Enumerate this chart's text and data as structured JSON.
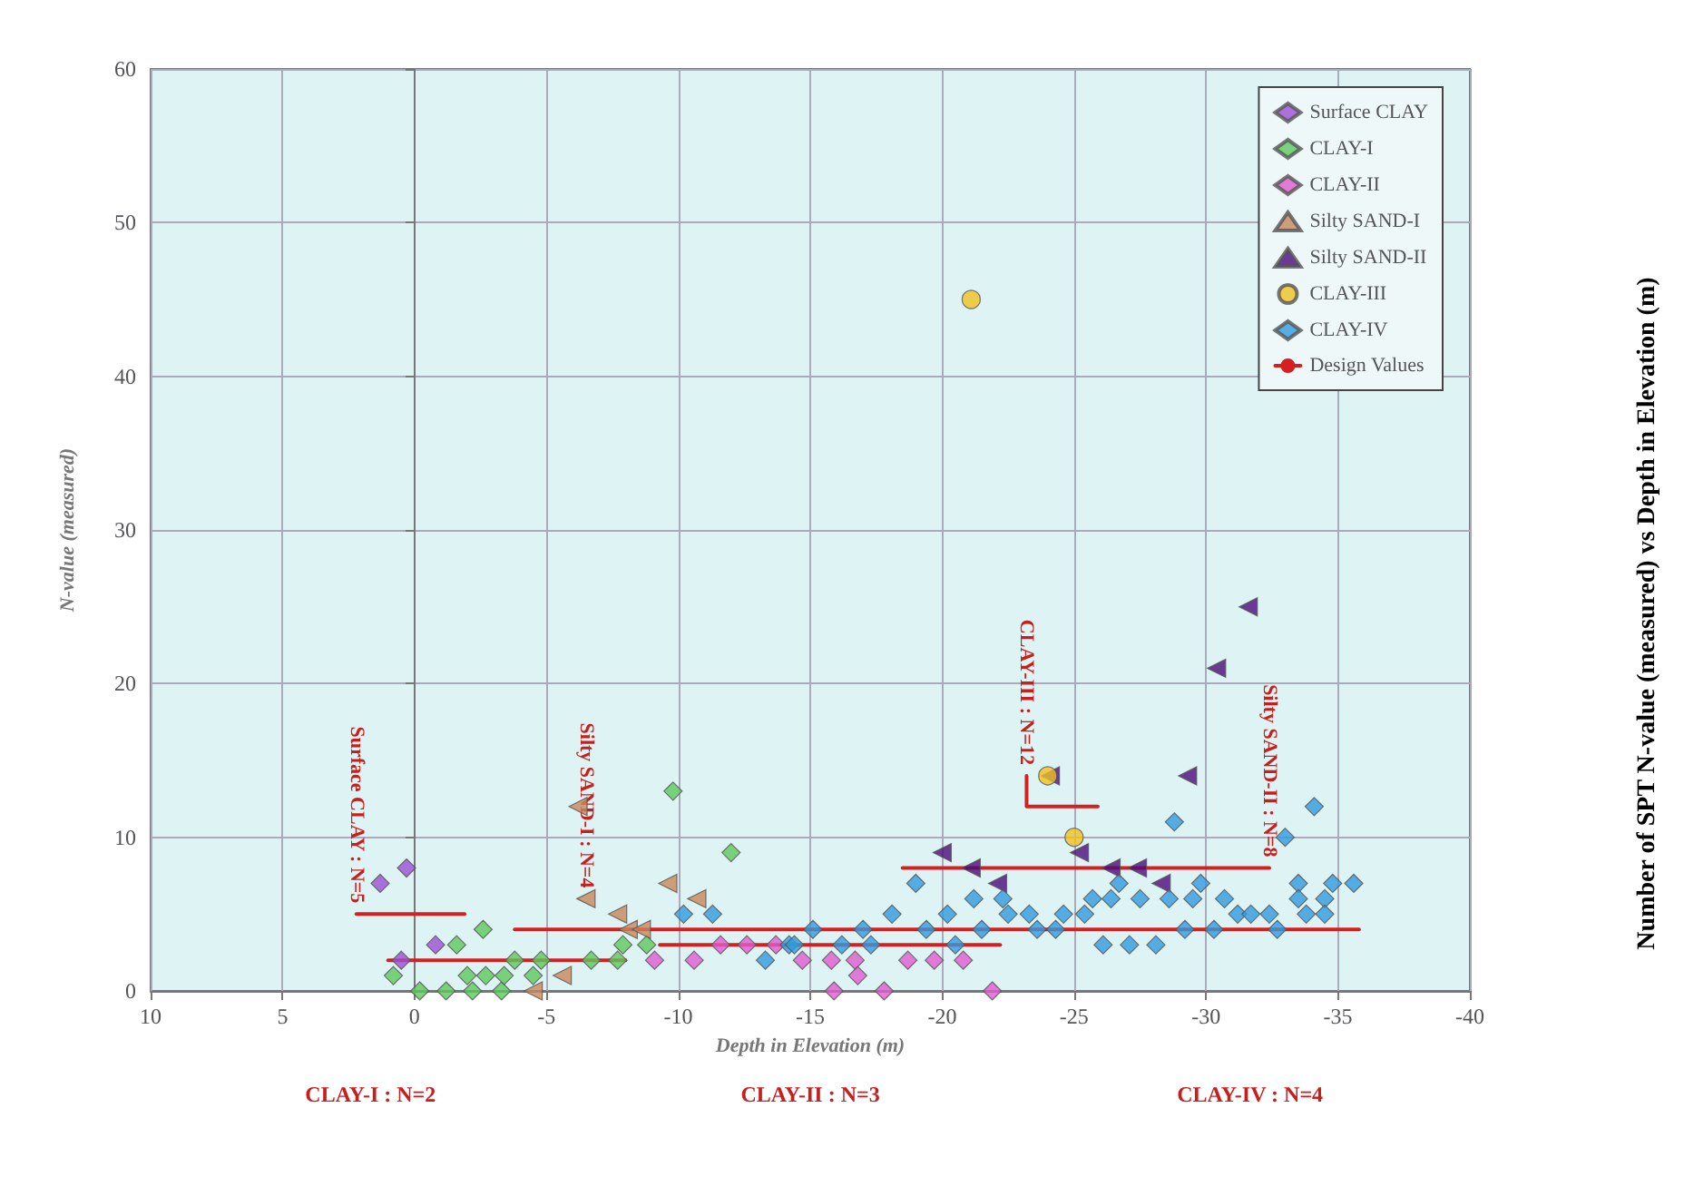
{
  "chart_data": {
    "type": "scatter",
    "title": "Number of SPT N-value (measured) vs Depth in Elevation (m)",
    "xlabel": "Depth in Elevation (m)",
    "ylabel": "N-value (measured)",
    "xlim": [
      10,
      -40
    ],
    "xticks": [
      10,
      5,
      0,
      -5,
      -10,
      -15,
      -20,
      -25,
      -30,
      -35,
      -40
    ],
    "ylim": [
      0,
      60
    ],
    "yticks": [
      0,
      10,
      20,
      30,
      40,
      50,
      60
    ],
    "grid": true,
    "legend": "top right",
    "series": [
      {
        "name": "Surface CLAY",
        "color": "#9b4fd6",
        "marker": "diamond",
        "x": [
          1.3,
          0.3,
          -0.8,
          0.5
        ],
        "values": [
          7,
          8,
          3,
          2
        ]
      },
      {
        "name": "CLAY-I",
        "color": "#5cc85c",
        "marker": "diamond",
        "x": [
          0.8,
          -0.2,
          -1.2,
          -1.6,
          -2.6,
          -2.2,
          -3.3,
          -2,
          -2.7,
          -3.4,
          -3.8,
          -4.8,
          -4.5,
          -6.7,
          -7.7,
          -7.9,
          -8.8,
          -9.8,
          -12
        ],
        "values": [
          1,
          0,
          0,
          3,
          4,
          0,
          0,
          1,
          1,
          1,
          2,
          2,
          1,
          2,
          2,
          3,
          3,
          13,
          9
        ]
      },
      {
        "name": "CLAY-II",
        "color": "#e05ad0",
        "marker": "diamond",
        "x": [
          -9.1,
          -10.6,
          -11.6,
          -12.6,
          -13.7,
          -14.7,
          -15.8,
          -15.9,
          -16.7,
          -16.8,
          -17.8,
          -18.7,
          -19.7,
          -20.8,
          -21.9
        ],
        "values": [
          2,
          2,
          3,
          3,
          3,
          2,
          2,
          0,
          2,
          1,
          0,
          2,
          2,
          2,
          0
        ]
      },
      {
        "name": "Silty SAND-I",
        "color": "#c8865a",
        "marker": "triangle",
        "x": [
          -6.2,
          -6.5,
          -7.7,
          -8.1,
          -8.6,
          -9.6,
          -10.7,
          -5.6,
          -4.5
        ],
        "values": [
          12,
          6,
          5,
          4,
          4,
          7,
          6,
          1,
          0
        ]
      },
      {
        "name": "Silty SAND-II",
        "color": "#4b0a7a",
        "marker": "triangle",
        "x": [
          -31.6,
          -30.4,
          -29.3,
          -20,
          -21.1,
          -22.1,
          -25.2,
          -26.4,
          -27.4,
          -28.3,
          -24.1
        ],
        "values": [
          25,
          21,
          14,
          9,
          8,
          7,
          9,
          8,
          8,
          7,
          14
        ]
      },
      {
        "name": "CLAY-III",
        "color": "#f0c020",
        "marker": "circle",
        "x": [
          -21.1,
          -24,
          -25
        ],
        "values": [
          45,
          14,
          10
        ]
      },
      {
        "name": "CLAY-IV",
        "color": "#2f9be0",
        "marker": "diamond",
        "x": [
          -10.2,
          -11.3,
          -13.3,
          -14.2,
          -14.4,
          -15.1,
          -16.2,
          -17,
          -17.3,
          -18.1,
          -19,
          -19.4,
          -20.2,
          -20.5,
          -21.2,
          -21.5,
          -22.3,
          -22.5,
          -23.3,
          -23.6,
          -24.3,
          -24.6,
          -25.4,
          -25.7,
          -26.1,
          -26.4,
          -26.7,
          -27.1,
          -27.5,
          -28.1,
          -28.6,
          -28.8,
          -29.2,
          -29.5,
          -29.8,
          -30.3,
          -30.7,
          -31.2,
          -31.7,
          -32.4,
          -32.7,
          -33,
          -33.5,
          -33.5,
          -33.8,
          -34.1,
          -34.5,
          -34.5,
          -34.8,
          -35.6
        ],
        "values": [
          5,
          5,
          2,
          3,
          3,
          4,
          3,
          4,
          3,
          5,
          7,
          4,
          5,
          3,
          6,
          4,
          6,
          5,
          5,
          4,
          4,
          5,
          5,
          6,
          3,
          6,
          7,
          3,
          6,
          3,
          6,
          11,
          4,
          6,
          7,
          4,
          6,
          5,
          5,
          5,
          4,
          10,
          7,
          6,
          5,
          12,
          6,
          5,
          7,
          7
        ]
      },
      {
        "name": "Design Values",
        "type": "line",
        "color": "#d42020",
        "marker": "none",
        "x": [
          2.2,
          -1.9
        ],
        "values": [
          5,
          5
        ]
      },
      {
        "type": "line",
        "color": "#d42020",
        "marker": "none",
        "x": [
          1,
          -8
        ],
        "values": [
          2,
          2
        ]
      },
      {
        "type": "line",
        "color": "#d42020",
        "marker": "none",
        "x": [
          -9.3,
          -22.2
        ],
        "values": [
          3,
          3
        ]
      },
      {
        "type": "line",
        "color": "#d42020",
        "marker": "none",
        "x": [
          -3.8,
          -35.8
        ],
        "values": [
          4,
          4
        ]
      },
      {
        "type": "line",
        "color": "#d42020",
        "marker": "none",
        "x": [
          -18.5,
          -32.4
        ],
        "values": [
          8,
          8
        ]
      },
      {
        "type": "line",
        "color": "#d42020",
        "marker": "none",
        "x": [
          -23.2,
          -23.2,
          -25.9
        ],
        "values": [
          14,
          12,
          12
        ]
      }
    ],
    "annotations": [
      {
        "text": "Surface CLAY : N=5",
        "x": 2.2,
        "y": 5
      },
      "CLAY-I : N=2",
      {
        "text": "Silty SAND-I : N=4",
        "x": -6.5,
        "y": 6
      },
      "CLAY-II : N=3",
      {
        "text": "CLAY-III : N=12",
        "x": -23.2,
        "y": 14
      },
      {
        "text": "Silty SAND-II : N=8",
        "x": -32.4,
        "y": 8
      },
      "CLAY-IV : N=4"
    ]
  }
}
